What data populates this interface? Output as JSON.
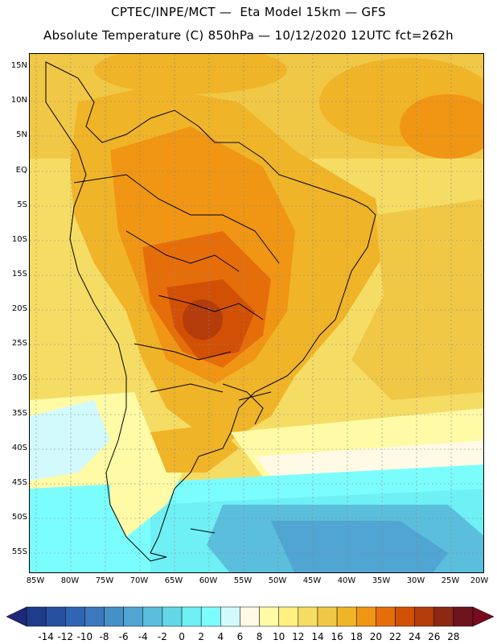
{
  "header": {
    "line1": "CPTEC/INPE/MCT —  Eta Model 15km — GFS",
    "line2": "Absolute Temperature (C) 850hPa — 10/12/2020 12UTC fct=262h"
  },
  "map": {
    "lat_labels": [
      "15N",
      "10N",
      "5N",
      "EQ",
      "5S",
      "10S",
      "15S",
      "20S",
      "25S",
      "30S",
      "35S",
      "40S",
      "45S",
      "50S",
      "55S"
    ],
    "lon_labels": [
      "85W",
      "80W",
      "75W",
      "70W",
      "65W",
      "60W",
      "55W",
      "50W",
      "45W",
      "40W",
      "35W",
      "30W",
      "25W",
      "20W"
    ]
  },
  "colorbar": {
    "labels": [
      "-14",
      "-12",
      "-10",
      "-8",
      "-6",
      "-4",
      "-2",
      "0",
      "2",
      "4",
      "6",
      "8",
      "10",
      "12",
      "14",
      "16",
      "18",
      "20",
      "22",
      "24",
      "26",
      "28"
    ],
    "colors": [
      "#1e3c8c",
      "#2850a0",
      "#3064b4",
      "#3c78be",
      "#4690c8",
      "#50a5d2",
      "#5abedc",
      "#64d7e6",
      "#6ef0f5",
      "#7cfdfd",
      "#d2fafc",
      "#fffae6",
      "#fffaa5",
      "#fff082",
      "#f5dc64",
      "#f0c846",
      "#f0b428",
      "#f09614",
      "#e66e0a",
      "#d25005",
      "#b43c0a",
      "#8c2814",
      "#6e141e"
    ],
    "left_tip_color": "#1e2878",
    "right_tip_color": "#780a1e"
  }
}
